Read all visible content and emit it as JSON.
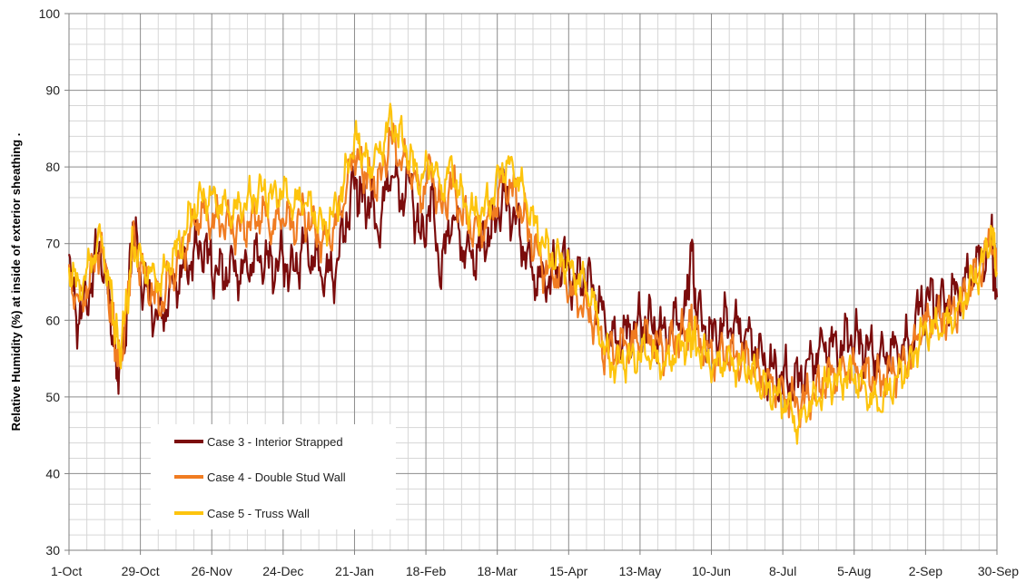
{
  "chart_data": {
    "type": "line",
    "title": "",
    "xlabel": "",
    "ylabel": "Relative Humidity (%) at inside of exterior sheathing .",
    "xlim": [
      0,
      364
    ],
    "ylim": [
      30,
      100
    ],
    "y_ticks": [
      30,
      40,
      50,
      60,
      70,
      80,
      90,
      100
    ],
    "x_ticks": [
      {
        "day": 0,
        "label": "1-Oct"
      },
      {
        "day": 28,
        "label": "29-Oct"
      },
      {
        "day": 56,
        "label": "26-Nov"
      },
      {
        "day": 84,
        "label": "24-Dec"
      },
      {
        "day": 112,
        "label": "21-Jan"
      },
      {
        "day": 140,
        "label": "18-Feb"
      },
      {
        "day": 168,
        "label": "18-Mar"
      },
      {
        "day": 196,
        "label": "15-Apr"
      },
      {
        "day": 224,
        "label": "13-May"
      },
      {
        "day": 252,
        "label": "10-Jun"
      },
      {
        "day": 280,
        "label": "8-Jul"
      },
      {
        "day": 308,
        "label": "5-Aug"
      },
      {
        "day": 336,
        "label": "2-Sep"
      },
      {
        "day": 364,
        "label": "30-Sep"
      }
    ],
    "grid": true,
    "legend_position": "bottom-left",
    "series": [
      {
        "name": "Case 3 - Interior Strapped",
        "color": "#7b0c0c",
        "points": [
          [
            0,
            66
          ],
          [
            4,
            60
          ],
          [
            8,
            64
          ],
          [
            12,
            70
          ],
          [
            16,
            62
          ],
          [
            18,
            55
          ],
          [
            20,
            53
          ],
          [
            23,
            62
          ],
          [
            25,
            72
          ],
          [
            28,
            66
          ],
          [
            32,
            62
          ],
          [
            36,
            60
          ],
          [
            40,
            64
          ],
          [
            44,
            66
          ],
          [
            48,
            68
          ],
          [
            52,
            70
          ],
          [
            56,
            67
          ],
          [
            60,
            66
          ],
          [
            64,
            67
          ],
          [
            68,
            66
          ],
          [
            72,
            68
          ],
          [
            76,
            68
          ],
          [
            80,
            67
          ],
          [
            84,
            68
          ],
          [
            88,
            66
          ],
          [
            92,
            70
          ],
          [
            96,
            68
          ],
          [
            100,
            66
          ],
          [
            104,
            66
          ],
          [
            108,
            72
          ],
          [
            112,
            78
          ],
          [
            115,
            76
          ],
          [
            118,
            75
          ],
          [
            122,
            72
          ],
          [
            126,
            80
          ],
          [
            130,
            76
          ],
          [
            134,
            78
          ],
          [
            138,
            70
          ],
          [
            142,
            76
          ],
          [
            146,
            66
          ],
          [
            150,
            74
          ],
          [
            154,
            70
          ],
          [
            158,
            68
          ],
          [
            162,
            70
          ],
          [
            166,
            72
          ],
          [
            170,
            76
          ],
          [
            174,
            74
          ],
          [
            178,
            70
          ],
          [
            182,
            66
          ],
          [
            186,
            65
          ],
          [
            190,
            66
          ],
          [
            194,
            68
          ],
          [
            198,
            65
          ],
          [
            202,
            66
          ],
          [
            206,
            64
          ],
          [
            210,
            60
          ],
          [
            214,
            57
          ],
          [
            218,
            58
          ],
          [
            222,
            59
          ],
          [
            226,
            60
          ],
          [
            230,
            59
          ],
          [
            234,
            58
          ],
          [
            238,
            60
          ],
          [
            242,
            61
          ],
          [
            244,
            70
          ],
          [
            246,
            62
          ],
          [
            250,
            58
          ],
          [
            254,
            58
          ],
          [
            258,
            60
          ],
          [
            262,
            59
          ],
          [
            266,
            58
          ],
          [
            270,
            56
          ],
          [
            274,
            54
          ],
          [
            278,
            53
          ],
          [
            282,
            52
          ],
          [
            286,
            52
          ],
          [
            290,
            54
          ],
          [
            294,
            56
          ],
          [
            298,
            57
          ],
          [
            302,
            56
          ],
          [
            306,
            58
          ],
          [
            310,
            57
          ],
          [
            314,
            56
          ],
          [
            318,
            55
          ],
          [
            322,
            56
          ],
          [
            326,
            56
          ],
          [
            330,
            57
          ],
          [
            334,
            62
          ],
          [
            338,
            63
          ],
          [
            342,
            62
          ],
          [
            346,
            63
          ],
          [
            350,
            64
          ],
          [
            354,
            66
          ],
          [
            358,
            68
          ],
          [
            362,
            70
          ],
          [
            364,
            63
          ]
        ]
      },
      {
        "name": "Case 4 - Double Stud Wall",
        "color": "#f07c22",
        "points": [
          [
            0,
            66
          ],
          [
            4,
            62
          ],
          [
            8,
            65
          ],
          [
            12,
            70
          ],
          [
            16,
            63
          ],
          [
            18,
            57
          ],
          [
            20,
            54
          ],
          [
            23,
            62
          ],
          [
            25,
            71
          ],
          [
            28,
            67
          ],
          [
            32,
            64
          ],
          [
            36,
            62
          ],
          [
            40,
            66
          ],
          [
            44,
            68
          ],
          [
            48,
            72
          ],
          [
            52,
            74
          ],
          [
            56,
            73
          ],
          [
            60,
            73
          ],
          [
            64,
            72
          ],
          [
            68,
            72
          ],
          [
            72,
            73
          ],
          [
            76,
            74
          ],
          [
            80,
            72
          ],
          [
            84,
            74
          ],
          [
            88,
            72
          ],
          [
            92,
            74
          ],
          [
            96,
            72
          ],
          [
            100,
            70
          ],
          [
            104,
            72
          ],
          [
            108,
            76
          ],
          [
            112,
            82
          ],
          [
            115,
            80
          ],
          [
            118,
            78
          ],
          [
            122,
            78
          ],
          [
            126,
            84
          ],
          [
            130,
            81
          ],
          [
            134,
            80
          ],
          [
            138,
            76
          ],
          [
            142,
            80
          ],
          [
            146,
            74
          ],
          [
            150,
            78
          ],
          [
            154,
            74
          ],
          [
            158,
            72
          ],
          [
            162,
            72
          ],
          [
            166,
            74
          ],
          [
            170,
            78
          ],
          [
            174,
            77
          ],
          [
            178,
            74
          ],
          [
            182,
            70
          ],
          [
            186,
            67
          ],
          [
            190,
            66
          ],
          [
            194,
            66
          ],
          [
            198,
            63
          ],
          [
            202,
            62
          ],
          [
            206,
            60
          ],
          [
            210,
            56
          ],
          [
            214,
            56
          ],
          [
            218,
            57
          ],
          [
            222,
            57
          ],
          [
            226,
            58
          ],
          [
            230,
            57
          ],
          [
            234,
            56
          ],
          [
            238,
            58
          ],
          [
            242,
            58
          ],
          [
            244,
            60
          ],
          [
            246,
            58
          ],
          [
            250,
            56
          ],
          [
            254,
            55
          ],
          [
            258,
            56
          ],
          [
            262,
            55
          ],
          [
            266,
            55
          ],
          [
            270,
            53
          ],
          [
            274,
            52
          ],
          [
            278,
            51
          ],
          [
            282,
            50
          ],
          [
            286,
            49
          ],
          [
            290,
            50
          ],
          [
            294,
            51
          ],
          [
            298,
            53
          ],
          [
            302,
            53
          ],
          [
            306,
            54
          ],
          [
            310,
            53
          ],
          [
            314,
            53
          ],
          [
            318,
            52
          ],
          [
            322,
            53
          ],
          [
            326,
            54
          ],
          [
            330,
            55
          ],
          [
            334,
            59
          ],
          [
            338,
            60
          ],
          [
            342,
            60
          ],
          [
            346,
            61
          ],
          [
            350,
            62
          ],
          [
            354,
            65
          ],
          [
            358,
            67
          ],
          [
            362,
            71
          ],
          [
            364,
            66
          ]
        ]
      },
      {
        "name": "Case 5 - Truss Wall",
        "color": "#fdc40e",
        "points": [
          [
            0,
            67
          ],
          [
            4,
            64
          ],
          [
            8,
            67
          ],
          [
            12,
            71
          ],
          [
            16,
            65
          ],
          [
            18,
            59
          ],
          [
            20,
            56
          ],
          [
            23,
            63
          ],
          [
            25,
            70
          ],
          [
            28,
            68
          ],
          [
            32,
            66
          ],
          [
            36,
            65
          ],
          [
            40,
            68
          ],
          [
            44,
            70
          ],
          [
            48,
            74
          ],
          [
            52,
            76
          ],
          [
            56,
            76
          ],
          [
            60,
            75
          ],
          [
            64,
            74
          ],
          [
            68,
            75
          ],
          [
            72,
            76
          ],
          [
            76,
            77
          ],
          [
            80,
            76
          ],
          [
            84,
            77
          ],
          [
            88,
            75
          ],
          [
            92,
            76
          ],
          [
            96,
            74
          ],
          [
            100,
            72
          ],
          [
            104,
            74
          ],
          [
            108,
            78
          ],
          [
            112,
            84
          ],
          [
            115,
            82
          ],
          [
            118,
            80
          ],
          [
            122,
            82
          ],
          [
            126,
            86
          ],
          [
            130,
            84
          ],
          [
            134,
            81
          ],
          [
            138,
            78
          ],
          [
            142,
            81
          ],
          [
            146,
            77
          ],
          [
            150,
            80
          ],
          [
            154,
            76
          ],
          [
            158,
            74
          ],
          [
            162,
            74
          ],
          [
            166,
            76
          ],
          [
            170,
            80
          ],
          [
            174,
            80
          ],
          [
            178,
            77
          ],
          [
            182,
            73
          ],
          [
            186,
            70
          ],
          [
            190,
            68
          ],
          [
            194,
            68
          ],
          [
            198,
            66
          ],
          [
            202,
            65
          ],
          [
            206,
            62
          ],
          [
            210,
            56
          ],
          [
            214,
            54
          ],
          [
            218,
            55
          ],
          [
            222,
            55
          ],
          [
            226,
            56
          ],
          [
            230,
            55
          ],
          [
            234,
            54
          ],
          [
            238,
            56
          ],
          [
            242,
            57
          ],
          [
            244,
            58
          ],
          [
            246,
            57
          ],
          [
            250,
            55
          ],
          [
            254,
            54
          ],
          [
            258,
            55
          ],
          [
            262,
            54
          ],
          [
            266,
            54
          ],
          [
            270,
            52
          ],
          [
            274,
            51
          ],
          [
            278,
            50
          ],
          [
            282,
            49
          ],
          [
            286,
            46
          ],
          [
            290,
            49
          ],
          [
            294,
            50
          ],
          [
            298,
            52
          ],
          [
            302,
            52
          ],
          [
            306,
            53
          ],
          [
            310,
            52
          ],
          [
            314,
            50
          ],
          [
            318,
            49
          ],
          [
            322,
            51
          ],
          [
            326,
            53
          ],
          [
            330,
            54
          ],
          [
            334,
            58
          ],
          [
            338,
            59
          ],
          [
            342,
            59
          ],
          [
            346,
            60
          ],
          [
            350,
            62
          ],
          [
            354,
            65
          ],
          [
            358,
            67
          ],
          [
            362,
            72
          ],
          [
            364,
            66
          ]
        ]
      }
    ]
  }
}
